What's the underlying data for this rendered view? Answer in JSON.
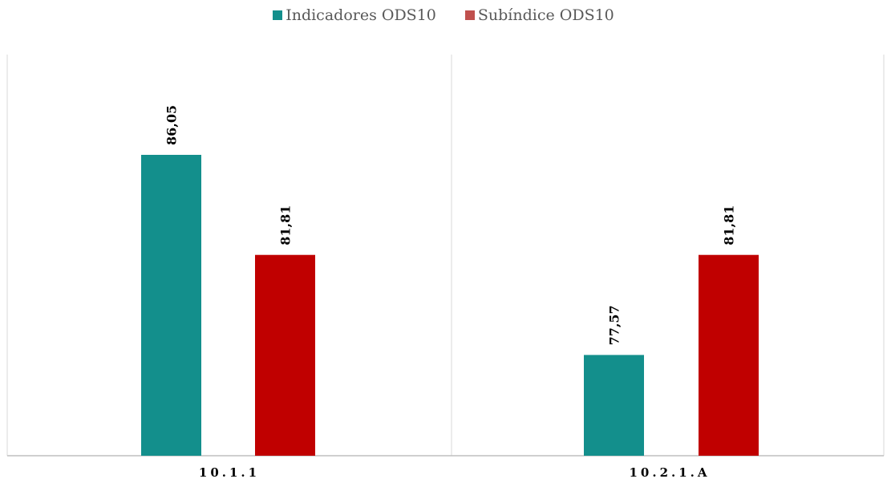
{
  "chart_data": {
    "type": "bar",
    "categories": [
      "10.1.1",
      "10.2.1.A"
    ],
    "series": [
      {
        "name": "Indicadores ODS10",
        "values": [
          86.05,
          77.57
        ],
        "labels": [
          "86,05",
          "77,57"
        ],
        "color": "#138f8c"
      },
      {
        "name": "Subíndice ODS10",
        "values": [
          81.81,
          81.81
        ],
        "labels": [
          "81,81",
          "81,81"
        ],
        "color": "#c00000"
      }
    ],
    "legend_colors": [
      "#138f8c",
      "#c0504d"
    ],
    "title": "",
    "xlabel": "",
    "ylabel": "",
    "ylim": [
      73.3,
      90.3
    ],
    "grid": false,
    "legend_position": "top"
  }
}
